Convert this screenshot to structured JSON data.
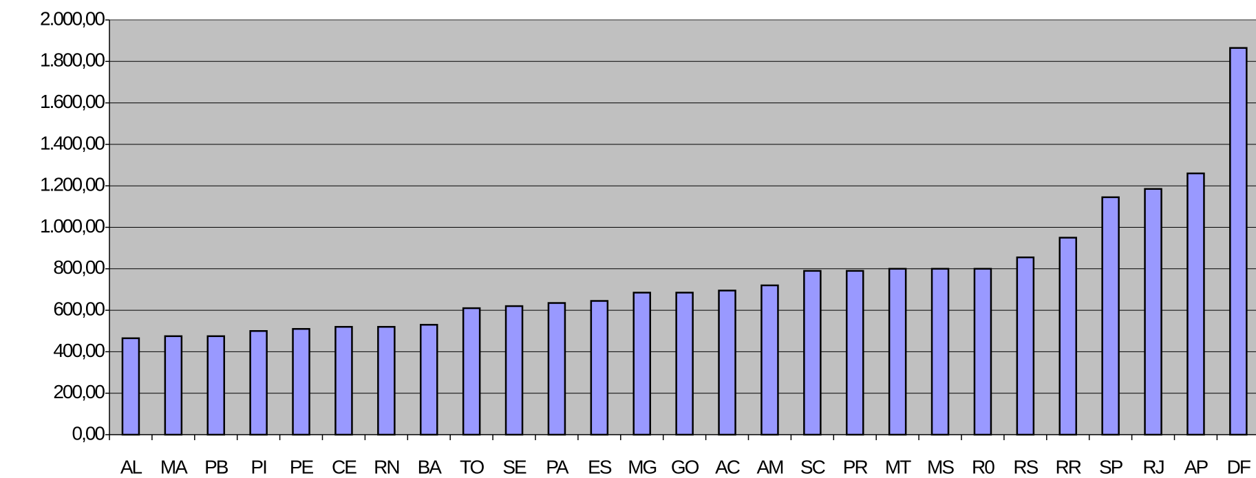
{
  "chart_data": {
    "type": "bar",
    "categories": [
      "AL",
      "MA",
      "PB",
      "PI",
      "PE",
      "CE",
      "RN",
      "BA",
      "TO",
      "SE",
      "PA",
      "ES",
      "MG",
      "GO",
      "AC",
      "AM",
      "SC",
      "PR",
      "MT",
      "MS",
      "R0",
      "RS",
      "RR",
      "SP",
      "RJ",
      "AP",
      "DF"
    ],
    "values": [
      465,
      475,
      475,
      500,
      510,
      520,
      520,
      530,
      610,
      620,
      635,
      645,
      685,
      685,
      695,
      720,
      790,
      790,
      800,
      800,
      800,
      855,
      950,
      1145,
      1185,
      1260,
      1865
    ],
    "color": "#9999ff",
    "ylim": [
      0,
      2000
    ],
    "yticks": [
      {
        "value": 0,
        "label": "0,00"
      },
      {
        "value": 200,
        "label": "200,00"
      },
      {
        "value": 400,
        "label": "400,00"
      },
      {
        "value": 600,
        "label": "600,00"
      },
      {
        "value": 800,
        "label": "800,00"
      },
      {
        "value": 1000,
        "label": "1.000,00"
      },
      {
        "value": 1200,
        "label": "1.200,00"
      },
      {
        "value": 1400,
        "label": "1.400,00"
      },
      {
        "value": 1600,
        "label": "1.600,00"
      },
      {
        "value": 1800,
        "label": "1.800,00"
      },
      {
        "value": 2000,
        "label": "2.000,00"
      }
    ],
    "grid": true
  }
}
